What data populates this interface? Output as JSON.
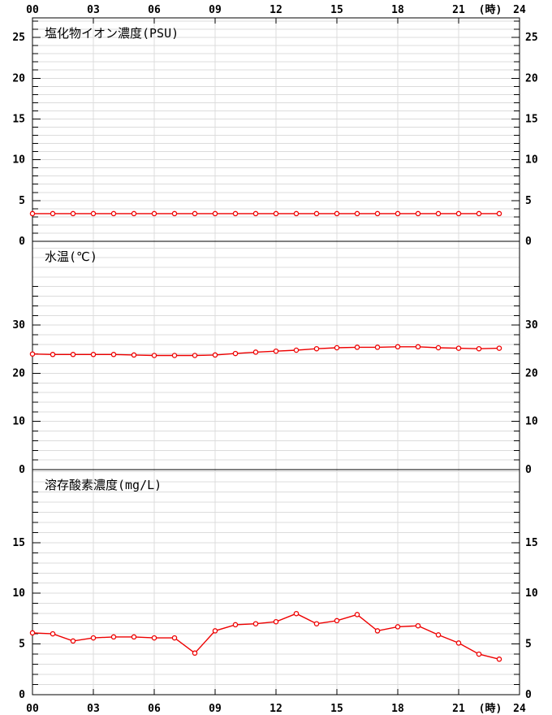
{
  "meta": {
    "time_axis": {
      "unit_label": "(時)",
      "tick_hours": [
        0,
        3,
        6,
        9,
        12,
        15,
        18,
        21,
        24
      ],
      "tick_labels": [
        "00",
        "03",
        "06",
        "09",
        "12",
        "15",
        "18",
        "21",
        "24"
      ],
      "hours": [
        0,
        1,
        2,
        3,
        4,
        5,
        6,
        7,
        8,
        9,
        10,
        11,
        12,
        13,
        14,
        15,
        16,
        17,
        18,
        19,
        20,
        21,
        22,
        23
      ]
    },
    "colors": {
      "line": "#ee0000",
      "marker_fill": "#ffffff",
      "grid": "#dcdcdc",
      "axis": "#000000",
      "background": "#ffffff",
      "text": "#000000"
    }
  },
  "chart_data": [
    {
      "type": "line",
      "title": "塩化物イオン濃度(PSU)",
      "x": [
        0,
        1,
        2,
        3,
        4,
        5,
        6,
        7,
        8,
        9,
        10,
        11,
        12,
        13,
        14,
        15,
        16,
        17,
        18,
        19,
        20,
        21,
        22,
        23
      ],
      "values": [
        3.4,
        3.4,
        3.4,
        3.4,
        3.4,
        3.4,
        3.4,
        3.4,
        3.4,
        3.4,
        3.4,
        3.4,
        3.4,
        3.4,
        3.4,
        3.4,
        3.4,
        3.4,
        3.4,
        3.4,
        3.4,
        3.4,
        3.4,
        3.4
      ],
      "ylim": [
        0,
        27.4
      ],
      "yticks_labeled": [
        0,
        5,
        10,
        15,
        20,
        25
      ],
      "ytick_minor_step": 1,
      "ytick_minor_max": 27,
      "grid_step": 1,
      "grid": true,
      "legend": "none"
    },
    {
      "type": "line",
      "title": "水温(℃)",
      "x": [
        0,
        1,
        2,
        3,
        4,
        5,
        6,
        7,
        8,
        9,
        10,
        11,
        12,
        13,
        14,
        15,
        16,
        17,
        18,
        19,
        20,
        21,
        22,
        23
      ],
      "values": [
        24.0,
        23.9,
        23.9,
        23.9,
        23.9,
        23.8,
        23.7,
        23.7,
        23.7,
        23.8,
        24.1,
        24.4,
        24.6,
        24.8,
        25.1,
        25.3,
        25.4,
        25.4,
        25.5,
        25.5,
        25.3,
        25.2,
        25.1,
        25.2
      ],
      "ylim": [
        0,
        47.4
      ],
      "yticks_labeled": [
        0,
        10,
        20,
        30
      ],
      "ytick_minor_step": 2,
      "ytick_minor_max": 38,
      "grid_step": 2,
      "grid": true,
      "legend": "none"
    },
    {
      "type": "line",
      "title": "溶存酸素濃度(mg/L)",
      "x": [
        0,
        1,
        2,
        3,
        4,
        5,
        6,
        7,
        8,
        9,
        10,
        11,
        12,
        13,
        14,
        15,
        16,
        17,
        18,
        19,
        20,
        21,
        22,
        23
      ],
      "values": [
        6.1,
        6.0,
        5.3,
        5.6,
        5.7,
        5.7,
        5.6,
        5.6,
        4.1,
        6.3,
        6.9,
        7.0,
        7.2,
        8.0,
        7.0,
        7.3,
        7.9,
        6.3,
        6.7,
        6.8,
        5.9,
        5.1,
        4.0,
        3.5
      ],
      "ylim": [
        0,
        22.2
      ],
      "yticks_labeled": [
        0,
        5,
        10,
        15
      ],
      "ytick_minor_step": 1,
      "ytick_minor_max": 20,
      "grid_step": 1,
      "grid": true,
      "legend": "none"
    }
  ]
}
